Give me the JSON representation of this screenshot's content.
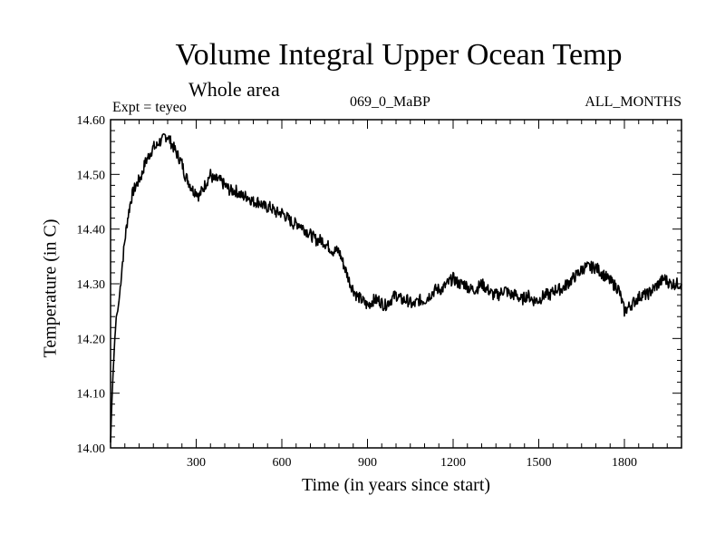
{
  "chart_data": {
    "type": "line",
    "title": "Volume Integral Upper Ocean Temp",
    "subtitle": "Whole area",
    "experiment_label": "Expt = teyeo",
    "run_label": "069_0_MaBP",
    "months_label": "ALL_MONTHS",
    "xlabel": "Time (in years since start)",
    "ylabel": "Temperature (in C)",
    "xlim": [
      0,
      2000
    ],
    "ylim": [
      14.0,
      14.6
    ],
    "x_ticks": [
      300,
      600,
      900,
      1200,
      1500,
      1800
    ],
    "x_tick_labels": [
      "300",
      "600",
      "900",
      "1200",
      "1500",
      "1800"
    ],
    "y_ticks": [
      14.0,
      14.1,
      14.2,
      14.3,
      14.4,
      14.5,
      14.6
    ],
    "y_tick_labels": [
      "14.00",
      "14.10",
      "14.20",
      "14.30",
      "14.40",
      "14.50",
      "14.60"
    ],
    "grid": false,
    "series": [
      {
        "name": "Volume integral upper ocean temperature",
        "color": "#000000",
        "x": [
          0,
          5,
          10,
          15,
          20,
          25,
          30,
          40,
          50,
          60,
          70,
          80,
          90,
          100,
          110,
          120,
          130,
          140,
          150,
          160,
          170,
          180,
          190,
          200,
          210,
          220,
          230,
          240,
          250,
          260,
          270,
          280,
          290,
          300,
          310,
          320,
          330,
          340,
          350,
          360,
          380,
          400,
          420,
          440,
          460,
          480,
          500,
          520,
          540,
          560,
          580,
          600,
          620,
          640,
          660,
          680,
          700,
          720,
          740,
          760,
          780,
          800,
          820,
          840,
          860,
          880,
          900,
          920,
          940,
          960,
          980,
          1000,
          1020,
          1040,
          1060,
          1080,
          1100,
          1120,
          1140,
          1160,
          1180,
          1200,
          1220,
          1240,
          1260,
          1280,
          1300,
          1320,
          1340,
          1360,
          1380,
          1400,
          1420,
          1440,
          1460,
          1480,
          1500,
          1520,
          1540,
          1560,
          1580,
          1600,
          1620,
          1640,
          1660,
          1680,
          1700,
          1720,
          1740,
          1760,
          1780,
          1800,
          1820,
          1840,
          1860,
          1880,
          1900,
          1920,
          1940,
          1960,
          1980,
          2000
        ],
        "values": [
          14.01,
          14.09,
          14.15,
          14.2,
          14.24,
          14.25,
          14.27,
          14.33,
          14.38,
          14.42,
          14.45,
          14.47,
          14.48,
          14.49,
          14.5,
          14.52,
          14.53,
          14.54,
          14.55,
          14.55,
          14.56,
          14.56,
          14.57,
          14.57,
          14.56,
          14.55,
          14.54,
          14.53,
          14.52,
          14.5,
          14.49,
          14.48,
          14.47,
          14.47,
          14.46,
          14.47,
          14.48,
          14.49,
          14.5,
          14.49,
          14.49,
          14.48,
          14.47,
          14.47,
          14.46,
          14.46,
          14.45,
          14.45,
          14.44,
          14.44,
          14.43,
          14.43,
          14.42,
          14.41,
          14.41,
          14.4,
          14.39,
          14.38,
          14.38,
          14.37,
          14.36,
          14.36,
          14.33,
          14.3,
          14.28,
          14.27,
          14.26,
          14.27,
          14.27,
          14.26,
          14.27,
          14.28,
          14.27,
          14.27,
          14.26,
          14.27,
          14.27,
          14.28,
          14.29,
          14.29,
          14.3,
          14.31,
          14.3,
          14.3,
          14.29,
          14.29,
          14.3,
          14.29,
          14.28,
          14.28,
          14.29,
          14.28,
          14.28,
          14.27,
          14.28,
          14.27,
          14.27,
          14.28,
          14.28,
          14.29,
          14.29,
          14.3,
          14.31,
          14.32,
          14.33,
          14.33,
          14.33,
          14.32,
          14.31,
          14.3,
          14.29,
          14.25,
          14.26,
          14.27,
          14.28,
          14.28,
          14.29,
          14.3,
          14.31,
          14.3,
          14.3,
          14.3
        ]
      }
    ]
  }
}
